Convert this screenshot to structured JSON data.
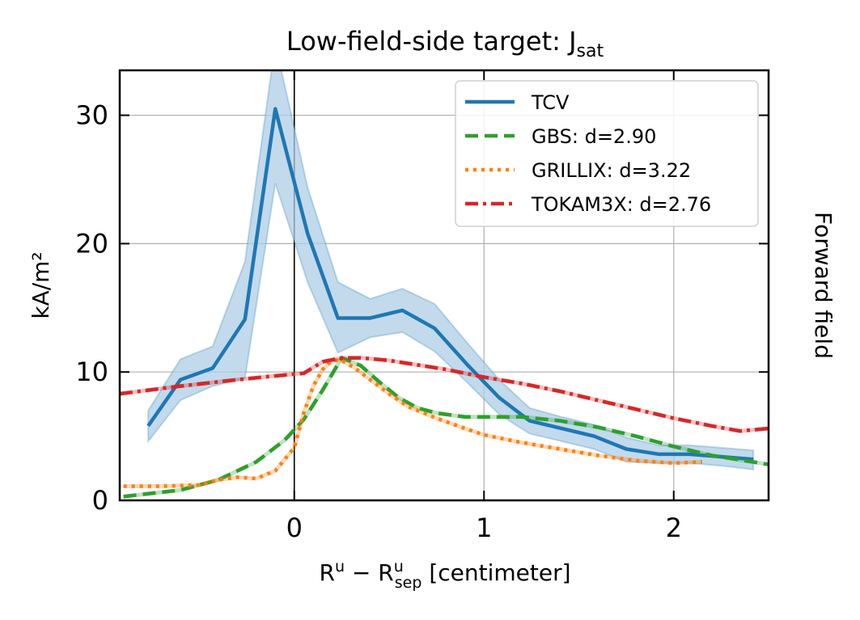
{
  "chart_data": {
    "type": "line",
    "title_main": "Low-field-side target: J",
    "title_sub": "sat",
    "xlabel_base": "R",
    "xlabel_sup1": "u",
    "xlabel_minus": " − R",
    "xlabel_sup2": "u",
    "xlabel_sub2": "sep",
    "xlabel_rest": " [centimeter]",
    "ylabel": "kA/m²",
    "right_label": "Forward field",
    "xlim": [
      -0.92,
      2.5
    ],
    "ylim": [
      0,
      33.5
    ],
    "xticks": [
      0,
      1,
      2
    ],
    "xtick_labels": [
      "0",
      "1",
      "2"
    ],
    "yticks": [
      0,
      10,
      20,
      30
    ],
    "ytick_labels": [
      "0",
      "10",
      "20",
      "30"
    ],
    "grid": true,
    "vline_x": 0,
    "legend_position": "top-right",
    "colors": {
      "tcv": "#1f77b4",
      "band": "#aecde6",
      "gbs": "#2ca02c",
      "grillix": "#ff7f0e",
      "tokam3x": "#d62728"
    },
    "series": [
      {
        "name": "TCV",
        "key": "tcv",
        "style": "solid",
        "x": [
          -0.77,
          -0.6,
          -0.43,
          -0.26,
          -0.1,
          0.07,
          0.23,
          0.4,
          0.57,
          0.74,
          0.91,
          1.08,
          1.24,
          1.41,
          1.58,
          1.75,
          1.92,
          2.08,
          2.25,
          2.42
        ],
        "values": [
          5.8,
          9.4,
          10.3,
          14.1,
          30.5,
          20.8,
          14.2,
          14.2,
          14.8,
          13.4,
          10.6,
          8.0,
          6.2,
          5.6,
          5.0,
          4.0,
          3.6,
          3.6,
          3.4,
          3.2
        ],
        "lower": [
          4.6,
          7.8,
          8.9,
          9.5,
          24.7,
          17.0,
          11.5,
          12.7,
          13.1,
          11.6,
          9.2,
          6.7,
          5.2,
          4.6,
          4.0,
          3.0,
          2.9,
          2.9,
          2.7,
          2.4
        ],
        "upper": [
          7.0,
          11.0,
          12.0,
          18.6,
          35.6,
          24.4,
          17.0,
          15.7,
          16.5,
          15.3,
          12.3,
          9.4,
          7.2,
          6.5,
          5.9,
          4.9,
          4.3,
          4.3,
          4.1,
          3.9
        ]
      },
      {
        "name": "GBS: d=2.90",
        "key": "gbs",
        "style": "dashed",
        "x": [
          -0.9,
          -0.6,
          -0.4,
          -0.2,
          -0.05,
          0.05,
          0.15,
          0.25,
          0.35,
          0.45,
          0.55,
          0.65,
          0.75,
          0.9,
          1.05,
          1.2,
          1.4,
          1.6,
          1.8,
          2.0,
          2.2,
          2.5
        ],
        "values": [
          0.3,
          0.8,
          1.6,
          3.0,
          4.7,
          6.3,
          8.6,
          11.1,
          10.5,
          9.2,
          8.0,
          7.2,
          6.8,
          6.5,
          6.5,
          6.5,
          6.2,
          5.7,
          5.0,
          4.2,
          3.5,
          2.8
        ]
      },
      {
        "name": "GRILLIX: d=3.22",
        "key": "grillix",
        "style": "dotted",
        "x": [
          -0.9,
          -0.7,
          -0.5,
          -0.4,
          -0.3,
          -0.2,
          -0.1,
          0.0,
          0.05,
          0.1,
          0.15,
          0.2,
          0.25,
          0.32,
          0.4,
          0.5,
          0.6,
          0.75,
          0.9,
          1.0,
          1.2,
          1.4,
          1.6,
          1.8,
          2.0,
          2.15
        ],
        "values": [
          1.1,
          1.1,
          1.2,
          1.6,
          1.8,
          1.7,
          2.3,
          4.1,
          6.8,
          8.9,
          10.2,
          10.9,
          10.9,
          10.3,
          9.4,
          8.3,
          7.3,
          6.4,
          5.6,
          5.1,
          4.5,
          4.0,
          3.5,
          3.1,
          2.9,
          3.0
        ]
      },
      {
        "name": "TOKAM3X: d=2.76",
        "key": "tokam3x",
        "style": "dashdot",
        "x": [
          -0.92,
          -0.6,
          -0.3,
          -0.1,
          0.05,
          0.15,
          0.25,
          0.35,
          0.5,
          0.8,
          1.0,
          1.2,
          1.4,
          1.6,
          1.8,
          2.0,
          2.2,
          2.35,
          2.5
        ],
        "values": [
          8.3,
          8.9,
          9.4,
          9.7,
          9.9,
          10.8,
          11.1,
          11.1,
          10.9,
          10.2,
          9.6,
          9.1,
          8.5,
          7.8,
          7.1,
          6.4,
          5.8,
          5.4,
          5.6
        ]
      }
    ]
  }
}
